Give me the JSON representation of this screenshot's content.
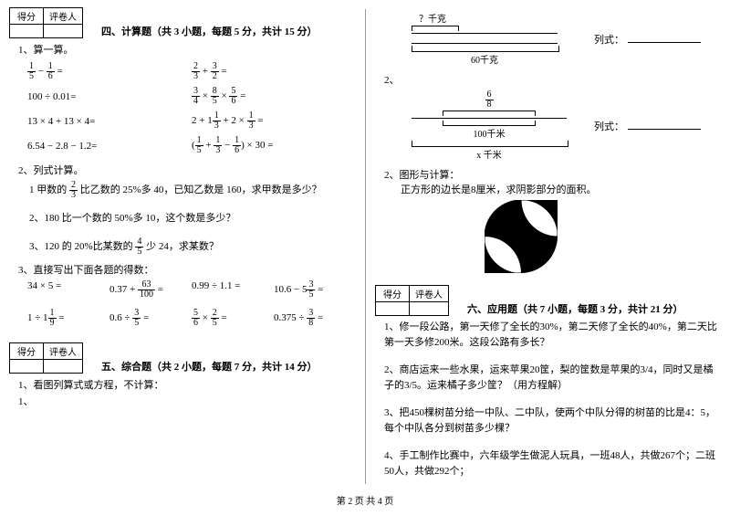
{
  "footer": "第 2 页 共 4 页",
  "left": {
    "score_headers": [
      "得分",
      "评卷人"
    ],
    "sec4_title": "四、计算题（共 3 小题，每题 5 分，共计 15 分）",
    "q1_label": "1、算一算。",
    "q1_rows": [
      [
        "<frac>1|5</frac> − <frac>1|6</frac> =",
        "<frac>2|3</frac> + <frac>3|2</frac> ="
      ],
      [
        "100 ÷ 0.01=",
        "<frac>3|4</frac> × <frac>8|5</frac> × <frac>5|6</frac> ="
      ],
      [
        "13 × 4 + 13 × 4=",
        "2 + 1<frac>1|3</frac> + 2 × <frac>1|3</frac> ="
      ],
      [
        "6.54 − 2.8 − 1.2=",
        "(<frac>1|5</frac> + <frac>1|3</frac> − <frac>1|6</frac>) × 30 ="
      ]
    ],
    "q2_label": "2、列式计算。",
    "q2_sub": [
      "1 甲数的 <frac>2|3</frac> 比乙数的 25%多 40，已知乙数是 160，求甲数是多少？",
      "2、180 比一个数的 50%多 10，这个数是多少？",
      "3、120 的 20%比某数的 <frac>4|5</frac> 少 24，求某数？"
    ],
    "q3_label": "3、直接写出下面各题的得数：",
    "q3_row1": [
      "34 × 5 =",
      "0.37 + <frac>63|100</frac> =",
      "0.99 ÷ 1.1 =",
      "10.6 − 5<frac>3|5</frac> ="
    ],
    "q3_row2": [
      "1 ÷ 1<frac>1|9</frac> =",
      "0.6 ÷ <frac>3|5</frac> =",
      "<frac>5|6</frac> × <frac>2|5</frac> =",
      "0.375 ÷ <frac>3|8</frac> ="
    ],
    "sec5_title": "五、综合题（共 2 小题，每题 7 分，共计 14 分）",
    "sec5_q1": "1、看图列算式或方程，不计算："
  },
  "right": {
    "d1_top": "？千克",
    "d1_bottom": "60千克",
    "d1_label": "列式：",
    "d2_label": "2、",
    "d2_top": "<frac>6|8</frac>",
    "d2_mid": "100千米",
    "d2_bottom": "x 千米",
    "d2_right": "列式：",
    "geo_label": "2、图形与计算：",
    "geo_text": "正方形的边长是8厘米，求阴影部分的面积。",
    "score_headers": [
      "得分",
      "评卷人"
    ],
    "sec6_title": "六、应用题（共 7 小题，每题 3 分，共计 21 分）",
    "sec6_q": [
      "1、修一段公路，第一天修了全长的30%，第二天修了全长的40%，第二天比第一天多修200米。这段公路有多长？",
      "2、商店运来一些水果，运来苹果20筐，梨的筐数是苹果的3/4，同时又是橘子的3/5。运来橘子多少筐？（用方程解）",
      "3、把450棵树苗分给一中队、二中队，使两个中队分得的树苗的比是4：5，每个中队各分到树苗多少棵？",
      "4、手工制作比赛中，六年级学生做泥人玩具，一班48人，共做267个；二班50人，共做292个；"
    ]
  },
  "style": {
    "bg": "#ffffff",
    "text_color": "#000000",
    "font_size_body": 11,
    "font_size_small": 10,
    "divider_color": "#999999"
  }
}
